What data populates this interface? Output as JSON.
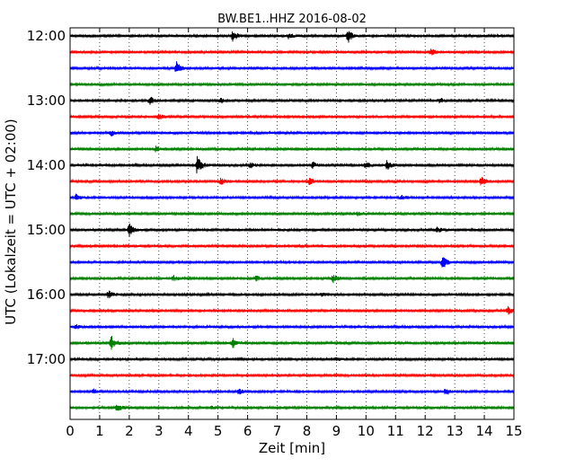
{
  "chart_data": {
    "type": "line",
    "title": "BW.BE1..HHZ 2016-08-02",
    "xlabel": "Zeit  [min]",
    "ylabel": "UTC (Lokalzeit = UTC + 02:00)",
    "xlim": [
      0,
      15
    ],
    "x_ticks": [
      "0",
      "1",
      "2",
      "3",
      "4",
      "5",
      "6",
      "7",
      "8",
      "9",
      "10",
      "11",
      "12",
      "13",
      "14",
      "15"
    ],
    "y_ticks": [
      "12:00",
      "13:00",
      "14:00",
      "15:00",
      "16:00",
      "17:00"
    ],
    "grid": true,
    "trace_interval_minutes": 15,
    "trace_colors": [
      "#000000",
      "#ff0000",
      "#0000ff",
      "#008000"
    ],
    "series": [
      {
        "start": "12:00",
        "events": [
          [
            5.5,
            1.0
          ],
          [
            7.4,
            0.5
          ],
          [
            9.4,
            1.0
          ]
        ]
      },
      {
        "start": "12:15",
        "events": [
          [
            12.2,
            0.5
          ]
        ]
      },
      {
        "start": "12:30",
        "events": [
          [
            3.6,
            1.0
          ]
        ]
      },
      {
        "start": "12:45",
        "events": []
      },
      {
        "start": "13:00",
        "events": [
          [
            2.7,
            0.6
          ],
          [
            5.1,
            0.4
          ],
          [
            12.5,
            0.4
          ]
        ]
      },
      {
        "start": "13:15",
        "events": [
          [
            3.0,
            0.4
          ]
        ]
      },
      {
        "start": "13:30",
        "events": [
          [
            1.4,
            0.4
          ]
        ]
      },
      {
        "start": "13:45",
        "events": [
          [
            2.9,
            0.4
          ]
        ]
      },
      {
        "start": "14:00",
        "events": [
          [
            4.3,
            1.6
          ],
          [
            6.1,
            0.5
          ],
          [
            8.2,
            0.5
          ],
          [
            10.0,
            0.5
          ],
          [
            10.7,
            0.8
          ]
        ]
      },
      {
        "start": "14:15",
        "events": [
          [
            5.1,
            0.5
          ],
          [
            8.1,
            0.6
          ],
          [
            13.9,
            0.7
          ]
        ]
      },
      {
        "start": "14:30",
        "events": [
          [
            0.2,
            0.6
          ],
          [
            11.2,
            0.4
          ]
        ]
      },
      {
        "start": "14:45",
        "events": [
          [
            9.7,
            0.4
          ]
        ]
      },
      {
        "start": "15:00",
        "events": [
          [
            2.0,
            1.0
          ],
          [
            12.4,
            0.5
          ]
        ]
      },
      {
        "start": "15:15",
        "events": []
      },
      {
        "start": "15:30",
        "events": [
          [
            12.6,
            1.2
          ]
        ]
      },
      {
        "start": "15:45",
        "events": [
          [
            3.5,
            0.4
          ],
          [
            6.3,
            0.4
          ],
          [
            8.9,
            0.6
          ]
        ]
      },
      {
        "start": "16:00",
        "events": [
          [
            1.3,
            0.6
          ],
          [
            8.5,
            0.3
          ]
        ]
      },
      {
        "start": "16:15",
        "events": [
          [
            14.8,
            0.7
          ]
        ]
      },
      {
        "start": "16:30",
        "events": [
          [
            0.2,
            0.3
          ]
        ]
      },
      {
        "start": "16:45",
        "events": [
          [
            1.4,
            1.1
          ],
          [
            5.5,
            0.8
          ]
        ]
      },
      {
        "start": "17:00",
        "events": [
          [
            9.0,
            0.3
          ]
        ]
      },
      {
        "start": "17:15",
        "events": []
      },
      {
        "start": "17:30",
        "events": [
          [
            0.8,
            0.4
          ],
          [
            5.7,
            0.5
          ],
          [
            12.7,
            0.6
          ]
        ]
      },
      {
        "start": "17:45",
        "events": [
          [
            1.6,
            0.7
          ],
          [
            4.8,
            0.3
          ]
        ]
      }
    ]
  }
}
